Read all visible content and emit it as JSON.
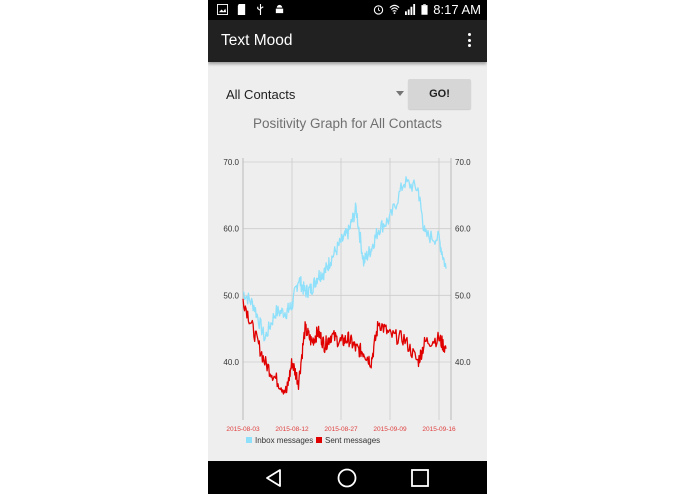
{
  "status_bar": {
    "left_icons": [
      "image-icon",
      "sd-card-icon",
      "usb-icon",
      "android-icon"
    ],
    "right_icons": [
      "alarm-icon",
      "wifi-icon",
      "signal-icon",
      "battery-charging-icon"
    ],
    "time": "8:17 AM"
  },
  "app_bar": {
    "title": "Text Mood",
    "overflow_icon": "more-vert-icon"
  },
  "controls": {
    "contact_select": {
      "selected": "All Contacts"
    },
    "go_button": "GO!"
  },
  "graph_title": "Positivity Graph for All Contacts",
  "colors": {
    "inbox": "#8fe0fa",
    "sent": "#e00000",
    "x_label": "#e04040",
    "grid": "#cccccc"
  },
  "chart_data": {
    "type": "line",
    "title": "Positivity Graph for All Contacts",
    "xlabel": "",
    "ylabel": "",
    "x_ticks": [
      "2015-08-03",
      "2015-08-12",
      "2015-08-27",
      "2015-09-09",
      "2015-09-16"
    ],
    "y_ticks": [
      "40.0",
      "50.0",
      "60.0",
      "70.0"
    ],
    "ylim": [
      33,
      70
    ],
    "grid": true,
    "legend_position": "bottom",
    "series": [
      {
        "name": "Inbox messages",
        "color": "#8fe0fa",
        "x": [
          "2015-08-03",
          "2015-08-05",
          "2015-08-07",
          "2015-08-09",
          "2015-08-11",
          "2015-08-12",
          "2015-08-14",
          "2015-08-16",
          "2015-08-18",
          "2015-08-20",
          "2015-08-22",
          "2015-08-24",
          "2015-08-27",
          "2015-08-29",
          "2015-08-31",
          "2015-09-02",
          "2015-09-04",
          "2015-09-06",
          "2015-09-09",
          "2015-09-11",
          "2015-09-13",
          "2015-09-14",
          "2015-09-16",
          "2015-09-17"
        ],
        "values": [
          50.5,
          48.5,
          43.5,
          47.5,
          47.5,
          48.5,
          52.5,
          50.5,
          51.0,
          53.0,
          53.5,
          55.5,
          58.0,
          59.5,
          63.0,
          55.0,
          57.0,
          60.0,
          61.5,
          67.0,
          66.0,
          59.0,
          58.5,
          54.0
        ]
      },
      {
        "name": "Sent messages",
        "color": "#e00000",
        "x": [
          "2015-08-03",
          "2015-08-05",
          "2015-08-07",
          "2015-08-09",
          "2015-08-11",
          "2015-08-12",
          "2015-08-14",
          "2015-08-16",
          "2015-08-18",
          "2015-08-20",
          "2015-08-22",
          "2015-08-24",
          "2015-08-27",
          "2015-08-29",
          "2015-08-31",
          "2015-09-02",
          "2015-09-04",
          "2015-09-06",
          "2015-09-09",
          "2015-09-11",
          "2015-09-13",
          "2015-09-14",
          "2015-09-16",
          "2015-09-17"
        ],
        "values": [
          49.5,
          44.5,
          40.0,
          37.5,
          35.5,
          40.0,
          37.0,
          45.0,
          43.0,
          44.5,
          42.5,
          44.0,
          43.0,
          43.5,
          42.0,
          41.5,
          40.0,
          46.0,
          44.0,
          43.5,
          40.0,
          43.0,
          43.5,
          42.0
        ]
      }
    ]
  },
  "nav_bar": {
    "back": "back-icon",
    "home": "home-icon",
    "recents": "recents-icon"
  }
}
